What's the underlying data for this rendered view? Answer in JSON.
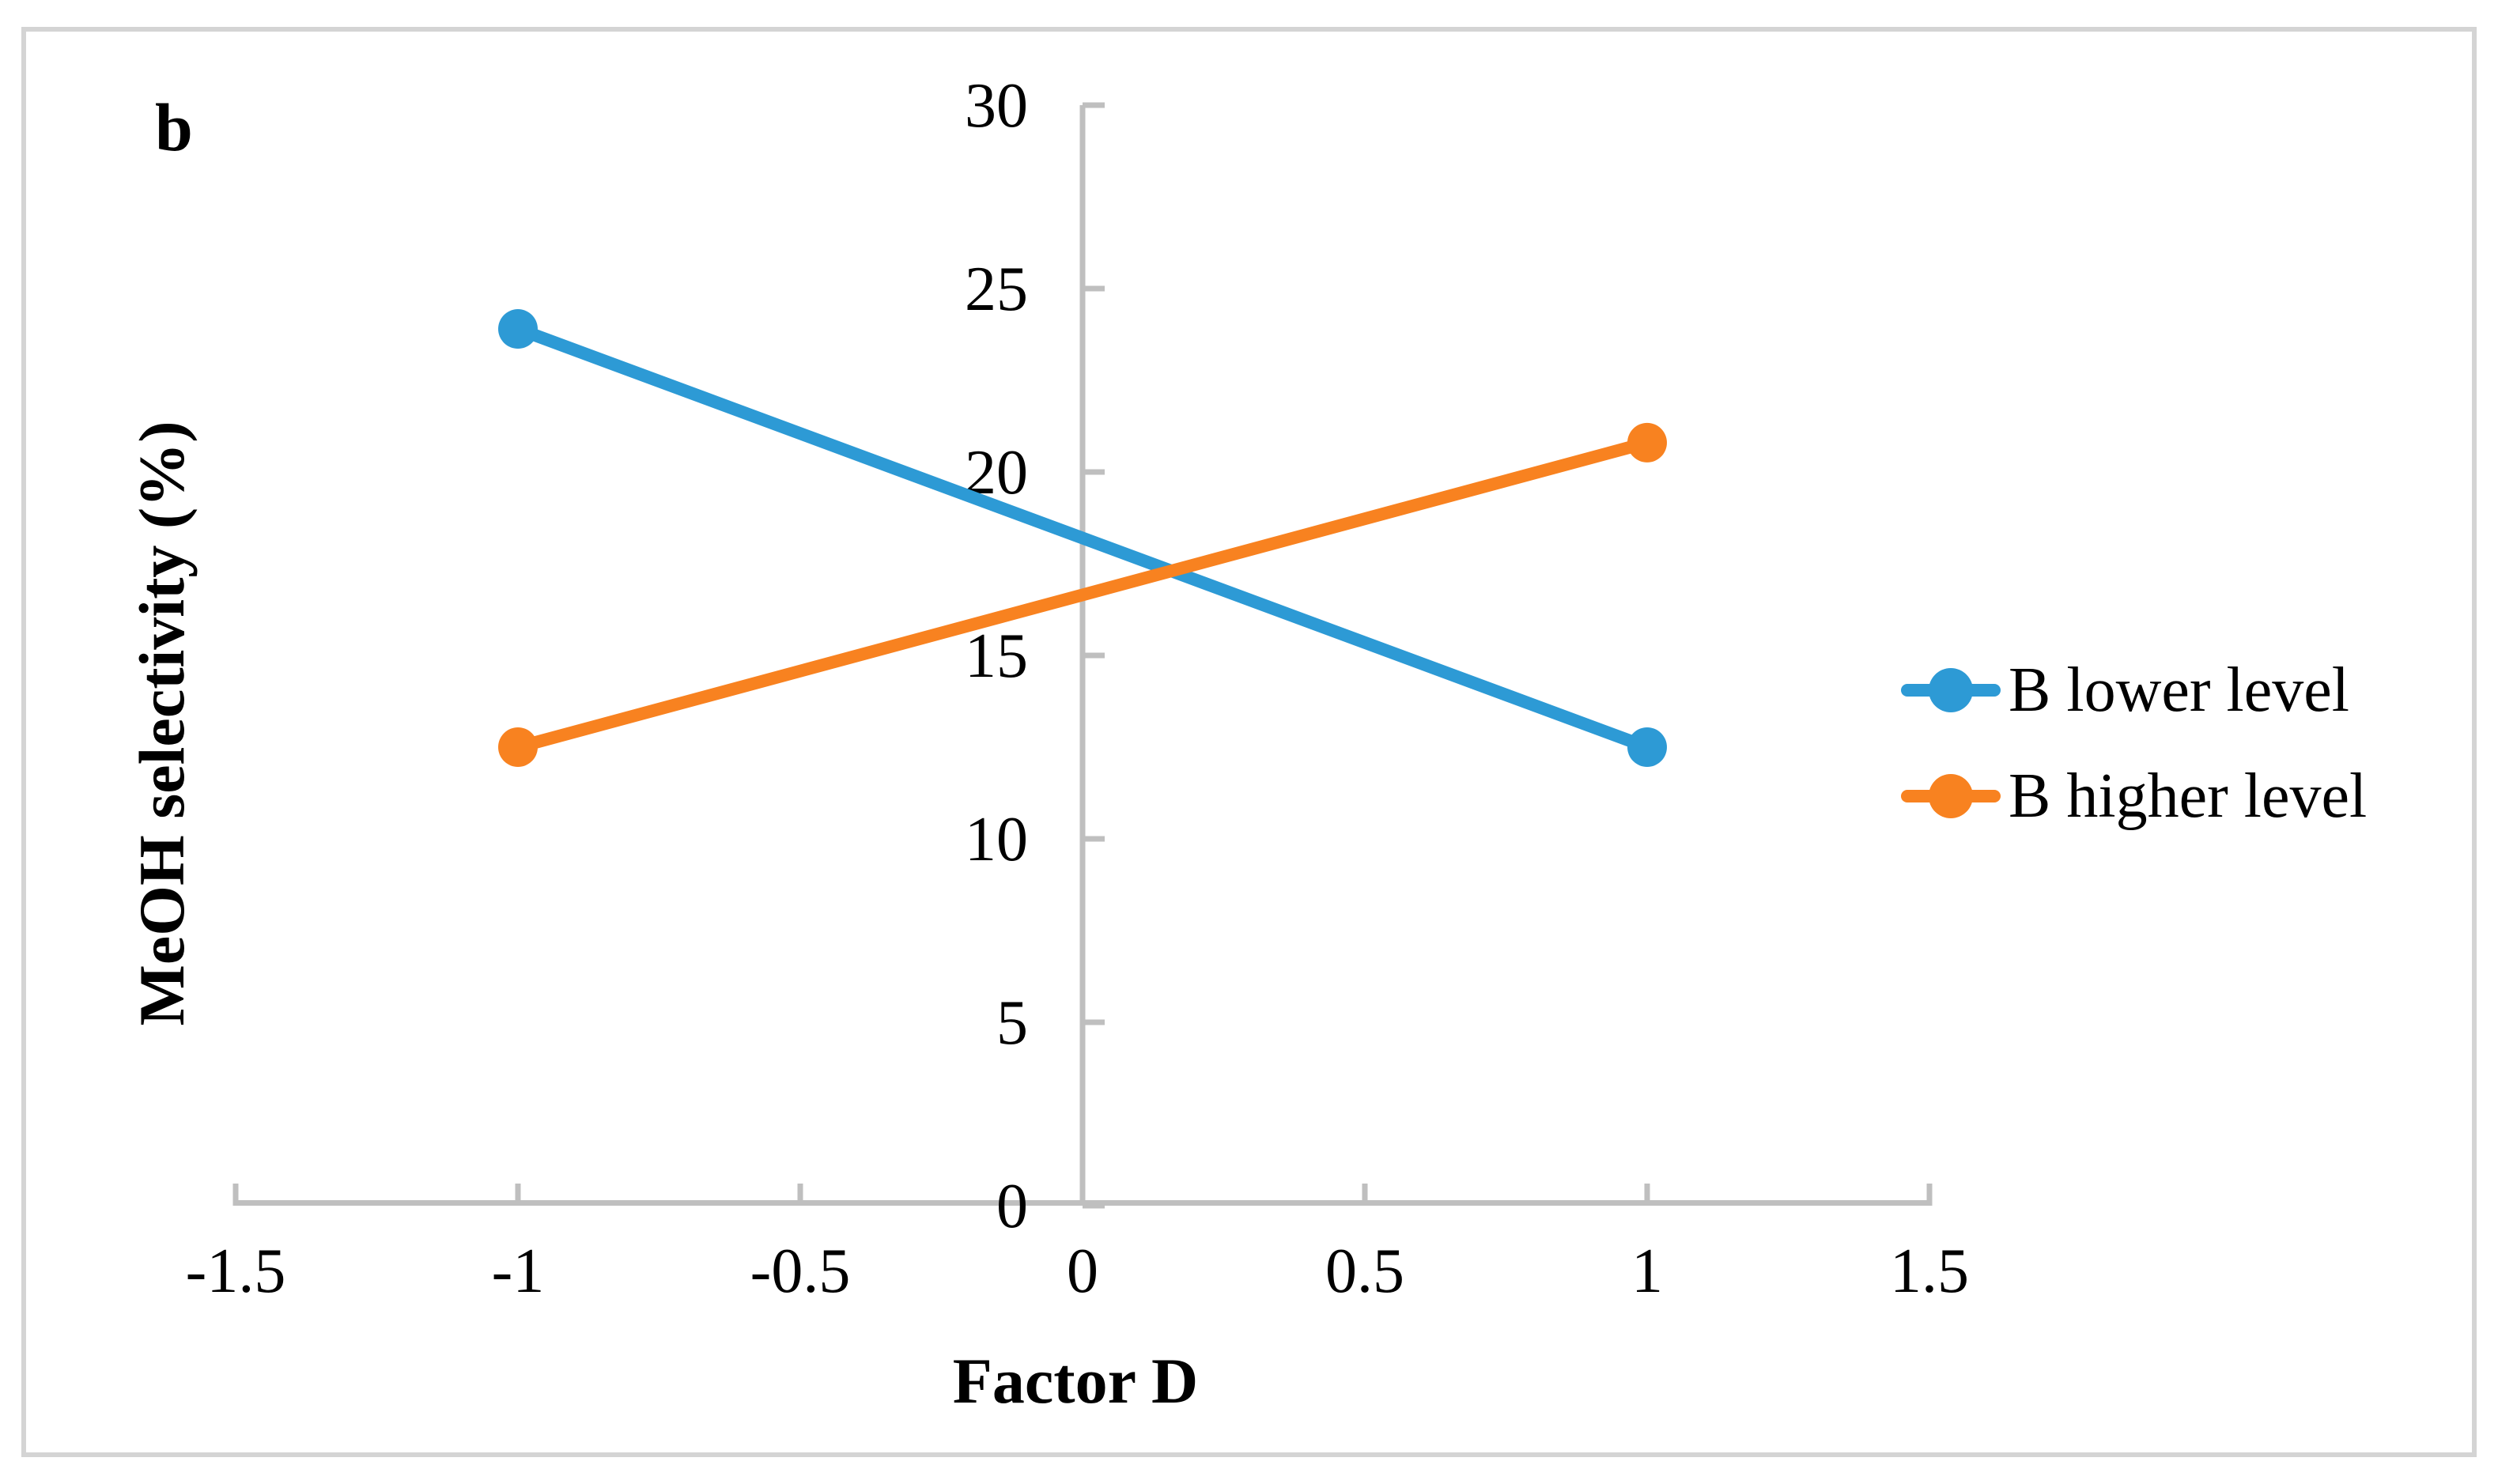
{
  "panel_label": "b",
  "chart_data": {
    "type": "line",
    "title": "",
    "xlabel": "Factor D",
    "ylabel": "MeOH selectivity (%)",
    "x": [
      -1,
      1
    ],
    "series": [
      {
        "name": "B lower level",
        "color": "#2d9ad5",
        "values": [
          23.9,
          12.5
        ]
      },
      {
        "name": "B higher level",
        "color": "#f88220",
        "values": [
          12.5,
          20.8
        ]
      }
    ],
    "xlim": [
      -1.5,
      1.5
    ],
    "ylim": [
      0,
      30
    ],
    "x_ticks": [
      -1.5,
      -1,
      -0.5,
      0,
      0.5,
      1,
      1.5
    ],
    "x_tick_labels": [
      "-1.5",
      "-1",
      "-0.5",
      "0",
      "0.5",
      "1",
      "1.5"
    ],
    "y_ticks": [
      0,
      5,
      10,
      15,
      20,
      25,
      30
    ],
    "y_tick_labels": [
      "0",
      "5",
      "10",
      "15",
      "20",
      "25",
      "30"
    ],
    "grid": false,
    "legend_position": "right",
    "axis_color": "#bfbfbf",
    "text_color": "#000000"
  }
}
